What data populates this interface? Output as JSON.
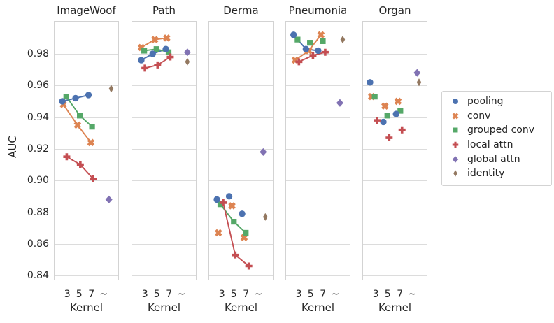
{
  "chart_data": {
    "type": "line",
    "title": "",
    "ylabel": "AUC",
    "xlabel": "Kernel",
    "x_categories": [
      "3",
      "5",
      "7",
      "~"
    ],
    "yticks": [
      0.98,
      0.96,
      0.94,
      0.92,
      0.9,
      0.88,
      0.86,
      0.84
    ],
    "ytick_labels": [
      "0.98",
      "0.96",
      "0.94",
      "0.92",
      "0.90",
      "0.88",
      "0.86",
      "0.84"
    ],
    "ylim": [
      0.839,
      1.001
    ],
    "grid": "horizontal-only",
    "legend_position": "right-outside",
    "series_styles": [
      {
        "name": "pooling",
        "marker": "circle",
        "color": "#4C72B0"
      },
      {
        "name": "conv",
        "marker": "x",
        "color": "#DD8452"
      },
      {
        "name": "grouped conv",
        "marker": "square",
        "color": "#55A868"
      },
      {
        "name": "local attn",
        "marker": "plus",
        "color": "#C44E52"
      },
      {
        "name": "global attn",
        "marker": "diamond",
        "color": "#8172B3"
      },
      {
        "name": "identity",
        "marker": "thin-diamond",
        "color": "#937860"
      }
    ],
    "panels": [
      {
        "title": "ImageWoof",
        "series": [
          {
            "name": "pooling",
            "kernels": [
              "3",
              "5",
              "7"
            ],
            "auc": [
              0.95,
              0.952,
              0.954
            ],
            "fx": [
              0.13,
              0.334,
              0.533
            ],
            "line": true
          },
          {
            "name": "conv",
            "kernels": [
              "3",
              "5",
              "7"
            ],
            "auc": [
              0.948,
              0.935,
              0.924
            ],
            "fx": [
              0.145,
              0.364,
              0.569
            ],
            "line": true
          },
          {
            "name": "grouped conv",
            "kernels": [
              "3",
              "5",
              "7"
            ],
            "auc": [
              0.953,
              0.941,
              0.934
            ],
            "fx": [
              0.191,
              0.399,
              0.587
            ],
            "line": true
          },
          {
            "name": "local attn",
            "kernels": [
              "3",
              "5",
              "7"
            ],
            "auc": [
              0.915,
              0.91,
              0.901
            ],
            "fx": [
              0.198,
              0.407,
              0.604
            ],
            "line": true
          },
          {
            "name": "global attn",
            "kernels": [
              "~"
            ],
            "auc": [
              0.888
            ],
            "fx": [
              0.846
            ],
            "line": false
          },
          {
            "name": "identity",
            "kernels": [
              "~"
            ],
            "auc": [
              0.958
            ],
            "fx": [
              0.881
            ],
            "line": false
          }
        ]
      },
      {
        "title": "Path",
        "series": [
          {
            "name": "pooling",
            "kernels": [
              "3",
              "5",
              "7"
            ],
            "auc": [
              0.976,
              0.98,
              0.983
            ],
            "fx": [
              0.15,
              0.325,
              0.528
            ],
            "line": true
          },
          {
            "name": "conv",
            "kernels": [
              "3",
              "5",
              "7"
            ],
            "auc": [
              0.984,
              0.989,
              0.99
            ],
            "fx": [
              0.152,
              0.358,
              0.542
            ],
            "line": true
          },
          {
            "name": "grouped conv",
            "kernels": [
              "3",
              "5",
              "7"
            ],
            "auc": [
              0.982,
              0.983,
              0.981
            ],
            "fx": [
              0.195,
              0.385,
              0.57
            ],
            "line": true
          },
          {
            "name": "local attn",
            "kernels": [
              "3",
              "5",
              "7"
            ],
            "auc": [
              0.971,
              0.973,
              0.978
            ],
            "fx": [
              0.206,
              0.401,
              0.596
            ],
            "line": true
          },
          {
            "name": "global attn",
            "kernels": [
              "~"
            ],
            "auc": [
              0.981
            ],
            "fx": [
              0.859
            ],
            "line": false
          },
          {
            "name": "identity",
            "kernels": [
              "~"
            ],
            "auc": [
              0.975
            ],
            "fx": [
              0.859
            ],
            "line": false
          }
        ]
      },
      {
        "title": "Derma",
        "series": [
          {
            "name": "pooling",
            "kernels": [
              "3",
              "5",
              "7"
            ],
            "auc": [
              0.888,
              0.89,
              0.879
            ],
            "fx": [
              0.13,
              0.318,
              0.517
            ],
            "line": false
          },
          {
            "name": "conv",
            "kernels": [
              "3",
              "5",
              "7"
            ],
            "auc": [
              0.867,
              0.884,
              0.864
            ],
            "fx": [
              0.154,
              0.361,
              0.548
            ],
            "line": false
          },
          {
            "name": "grouped conv",
            "kernels": [
              "3",
              "5",
              "7"
            ],
            "auc": [
              0.885,
              0.874,
              0.867
            ],
            "fx": [
              0.183,
              0.39,
              0.573
            ],
            "line": true
          },
          {
            "name": "local attn",
            "kernels": [
              "3",
              "5",
              "7"
            ],
            "auc": [
              0.886,
              0.853,
              0.846
            ],
            "fx": [
              0.226,
              0.412,
              0.62
            ],
            "line": true
          },
          {
            "name": "global attn",
            "kernels": [
              "~"
            ],
            "auc": [
              0.918
            ],
            "fx": [
              0.842
            ],
            "line": false
          },
          {
            "name": "identity",
            "kernels": [
              "~"
            ],
            "auc": [
              0.877
            ],
            "fx": [
              0.874
            ],
            "line": false
          }
        ]
      },
      {
        "title": "Pneumonia",
        "series": [
          {
            "name": "pooling",
            "kernels": [
              "3",
              "5",
              "7"
            ],
            "auc": [
              0.992,
              0.983,
              0.982
            ],
            "fx": [
              0.126,
              0.316,
              0.504
            ],
            "line": true
          },
          {
            "name": "conv",
            "kernels": [
              "3",
              "5",
              "7"
            ],
            "auc": [
              0.976,
              0.982,
              0.992
            ],
            "fx": [
              0.151,
              0.359,
              0.547
            ],
            "line": true
          },
          {
            "name": "grouped conv",
            "kernels": [
              "3",
              "5",
              "7"
            ],
            "auc": [
              0.989,
              0.987,
              0.988
            ],
            "fx": [
              0.187,
              0.378,
              0.575
            ],
            "line": false
          },
          {
            "name": "local attn",
            "kernels": [
              "3",
              "5",
              "7"
            ],
            "auc": [
              0.975,
              0.979,
              0.981
            ],
            "fx": [
              0.208,
              0.424,
              0.612
            ],
            "line": true
          },
          {
            "name": "global attn",
            "kernels": [
              "~"
            ],
            "auc": [
              0.949
            ],
            "fx": [
              0.838
            ],
            "line": false
          },
          {
            "name": "identity",
            "kernels": [
              "~"
            ],
            "auc": [
              0.989
            ],
            "fx": [
              0.881
            ],
            "line": false
          }
        ]
      },
      {
        "title": "Organ",
        "series": [
          {
            "name": "pooling",
            "kernels": [
              "3",
              "5",
              "7"
            ],
            "auc": [
              0.962,
              0.937,
              0.942
            ],
            "fx": [
              0.118,
              0.323,
              0.519
            ],
            "line": false
          },
          {
            "name": "conv",
            "kernels": [
              "3",
              "5",
              "7"
            ],
            "auc": [
              0.953,
              0.947,
              0.95
            ],
            "fx": [
              0.143,
              0.347,
              0.548
            ],
            "line": false
          },
          {
            "name": "grouped conv",
            "kernels": [
              "3",
              "5",
              "7"
            ],
            "auc": [
              0.953,
              0.941,
              0.944
            ],
            "fx": [
              0.19,
              0.384,
              0.584
            ],
            "line": false
          },
          {
            "name": "local attn",
            "kernels": [
              "3",
              "5",
              "7"
            ],
            "auc": [
              0.938,
              0.927,
              0.932
            ],
            "fx": [
              0.226,
              0.412,
              0.61
            ],
            "line": false
          },
          {
            "name": "global attn",
            "kernels": [
              "~"
            ],
            "auc": [
              0.968
            ],
            "fx": [
              0.842
            ],
            "line": false
          },
          {
            "name": "identity",
            "kernels": [
              "~"
            ],
            "auc": [
              0.962
            ],
            "fx": [
              0.871
            ],
            "line": false
          }
        ]
      }
    ],
    "legend_items": [
      "pooling",
      "conv",
      "grouped conv",
      "local attn",
      "global attn",
      "identity"
    ]
  }
}
